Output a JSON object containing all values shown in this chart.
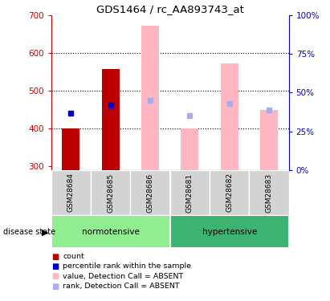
{
  "title": "GDS1464 / rc_AA893743_at",
  "samples": [
    "GSM28684",
    "GSM28685",
    "GSM28686",
    "GSM28681",
    "GSM28682",
    "GSM28683"
  ],
  "ylim_left": [
    290,
    700
  ],
  "ylim_right": [
    0,
    100
  ],
  "yticks_left": [
    300,
    400,
    500,
    600,
    700
  ],
  "yticks_right": [
    0,
    25,
    50,
    75,
    100
  ],
  "ytick_labels_right": [
    "0%",
    "25%",
    "50%",
    "75%",
    "100%"
  ],
  "count_bars": {
    "GSM28684": 400,
    "GSM28685": 557
  },
  "count_bar_color": "#BB0000",
  "absent_value_bars": {
    "GSM28686": 672,
    "GSM28681": 400,
    "GSM28682": 573,
    "GSM28683": 450
  },
  "absent_value_bar_color": "#FFB6C1",
  "bar_base": 290,
  "percentile_dots": {
    "GSM28684": 440,
    "GSM28685": 462
  },
  "percentile_dot_color": "#0000CC",
  "absent_rank_dots": {
    "GSM28686": 475,
    "GSM28681": 435,
    "GSM28682": 465,
    "GSM28683": 450
  },
  "absent_rank_dot_color": "#AAAAEE",
  "grid_lines": [
    400,
    500,
    600
  ],
  "tick_color_left": "#CC0000",
  "tick_color_right": "#0000CC",
  "normotensive_color": "#90EE90",
  "hypertensive_color": "#3CB371",
  "sample_bg_color": "#D3D3D3",
  "legend_items": [
    {
      "label": "count",
      "color": "#BB0000"
    },
    {
      "label": "percentile rank within the sample",
      "color": "#0000CC"
    },
    {
      "label": "value, Detection Call = ABSENT",
      "color": "#FFB6C1"
    },
    {
      "label": "rank, Detection Call = ABSENT",
      "color": "#AAAAEE"
    }
  ],
  "bar_width": 0.45
}
